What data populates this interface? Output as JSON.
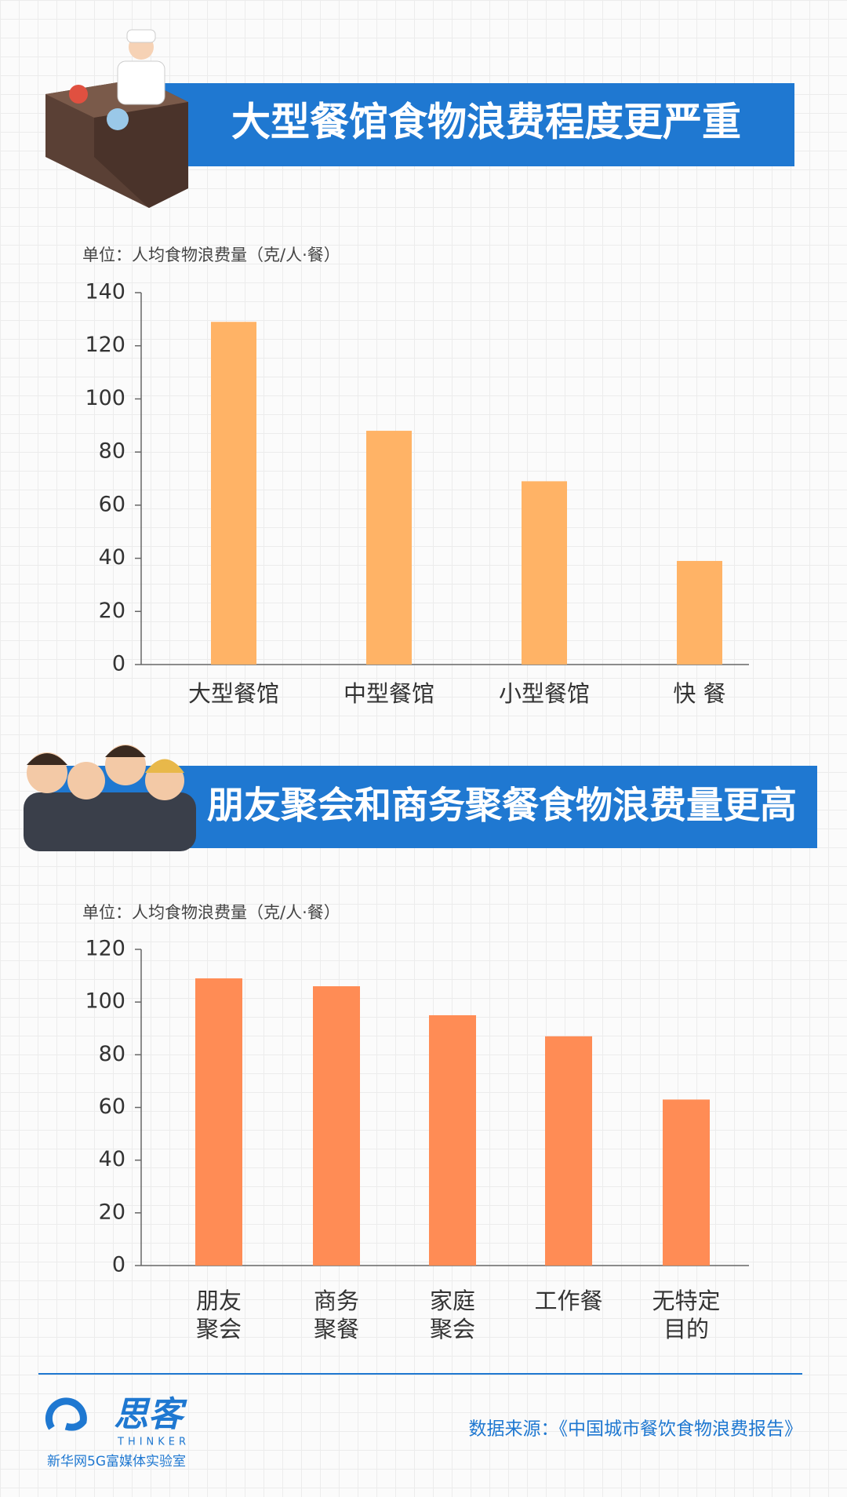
{
  "chart_data": [
    {
      "type": "bar",
      "title": "大型餐馆食物浪费程度更严重",
      "subtitle": "单位：人均食物浪费量（克/人·餐）",
      "categories": [
        "大型餐馆",
        "中型餐馆",
        "小型餐馆",
        "快 餐"
      ],
      "values": [
        129,
        88,
        69,
        39
      ],
      "color": "#ffb366",
      "ylim": [
        0,
        140
      ],
      "yticks": [
        0,
        20,
        40,
        60,
        80,
        100,
        120,
        140
      ],
      "grid": false
    },
    {
      "type": "bar",
      "title": "朋友聚会和商务聚餐食物浪费量更高",
      "subtitle": "单位：人均食物浪费量（克/人·餐）",
      "categories": [
        "朋友\n聚会",
        "商务\n聚餐",
        "家庭\n聚会",
        "工作餐",
        "无特定\n目的"
      ],
      "values": [
        109,
        106,
        95,
        87,
        63
      ],
      "color": "#ff8c55",
      "ylim": [
        0,
        120
      ],
      "yticks": [
        0,
        20,
        40,
        60,
        80,
        100,
        120
      ],
      "grid": false
    }
  ],
  "footer": {
    "logo": "思客",
    "logo_sub": "THINKER",
    "org": "新华网5G富媒体实验室",
    "source": "数据来源：《中国城市餐饮食物浪费报告》"
  }
}
